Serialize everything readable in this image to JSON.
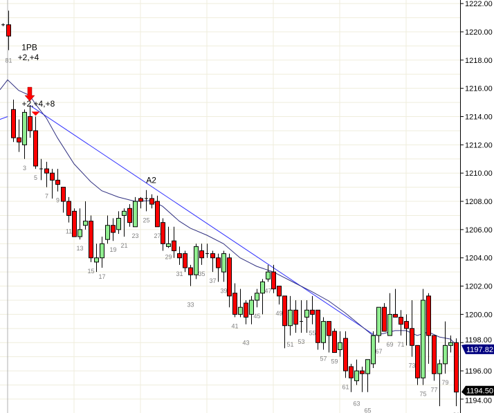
{
  "chart_data": {
    "type": "candlestick",
    "ylim": [
      1193.6,
      1222.2
    ],
    "yticks": [
      "1194.00",
      "1196.00",
      "1198.00",
      "1200.00",
      "1202.00",
      "1204.00",
      "1206.00",
      "1208.00",
      "1210.00",
      "1212.00",
      "1214.00",
      "1216.00",
      "1218.00",
      "1220.00",
      "1222.00"
    ],
    "grid": true,
    "colors": {
      "up": "#90ee90",
      "down": "#ff0000",
      "ema": "#303080",
      "trendline": "#3030ff",
      "grid": "#efeddc",
      "ema_tag": "#000080",
      "last_tag": "#000000"
    },
    "prior_day": [
      {
        "o": 1220.5,
        "h": 1220.6,
        "l": 1220.4,
        "c": 1220.5
      },
      {
        "label": "81",
        "o": 1220.5,
        "h": 1221.5,
        "l": 1218.7,
        "c": 1219.7
      }
    ],
    "candles": [
      [
        1214.5,
        1215.2,
        1212.2,
        1212.5
      ],
      [
        1212.5,
        1213.8,
        1211.5,
        1212.2
      ],
      [
        1212,
        1214.5,
        1211,
        1214.3
      ],
      [
        1214,
        1214.8,
        1212.5,
        1213
      ],
      [
        1213,
        1214,
        1210.3,
        1210.5
      ],
      [
        1210.3,
        1211,
        1209.5,
        1210.3
      ],
      [
        1210.3,
        1210.8,
        1209,
        1210
      ],
      [
        1210,
        1210.3,
        1208.2,
        1209.5
      ],
      [
        1209.5,
        1210.3,
        1208.7,
        1209.2
      ],
      [
        1209,
        1209,
        1207.2,
        1208
      ],
      [
        1208,
        1208.3,
        1206.5,
        1207
      ],
      [
        1207.3,
        1207.5,
        1205.5,
        1205.5
      ],
      [
        1205.5,
        1207.5,
        1205.3,
        1206
      ],
      [
        1206.3,
        1208,
        1206,
        1206.6
      ],
      [
        1206.6,
        1207,
        1203.7,
        1204
      ],
      [
        1203.7,
        1205,
        1203,
        1204
      ],
      [
        1204,
        1205.5,
        1203.3,
        1205
      ],
      [
        1205.3,
        1207,
        1205,
        1206.3
      ],
      [
        1206.3,
        1206.8,
        1205.2,
        1205.8
      ],
      [
        1206,
        1207.3,
        1205.7,
        1206.8
      ],
      [
        1207,
        1207.5,
        1205.5,
        1207.3
      ],
      [
        1207.5,
        1207.8,
        1206.2,
        1206.5
      ],
      [
        1206.2,
        1208.3,
        1206.2,
        1208
      ],
      [
        1208.2,
        1208.3,
        1207.5,
        1208
      ],
      [
        1208.2,
        1208.8,
        1207.3,
        1208.2
      ],
      [
        1208.2,
        1208.5,
        1207.5,
        1207.8
      ],
      [
        1208,
        1208.4,
        1206.2,
        1206.2
      ],
      [
        1206.5,
        1206.8,
        1204.5,
        1205
      ],
      [
        1204.8,
        1206.2,
        1204.7,
        1205
      ],
      [
        1205.2,
        1206.2,
        1204,
        1204.5
      ],
      [
        1204.3,
        1204.8,
        1203.5,
        1204
      ],
      [
        1204.3,
        1204.5,
        1203,
        1203.3
      ],
      [
        1203.3,
        1203.5,
        1202,
        1202.8
      ],
      [
        1202.8,
        1205,
        1202.5,
        1204.8
      ],
      [
        1204.5,
        1205,
        1203.5,
        1204
      ],
      [
        1204.3,
        1205,
        1204,
        1204.3
      ],
      [
        1204.3,
        1204.5,
        1203,
        1204
      ],
      [
        1204,
        1204.3,
        1202.3,
        1203.3
      ],
      [
        1203,
        1204.5,
        1202.3,
        1204.3
      ],
      [
        1204,
        1204.3,
        1200.5,
        1201.3
      ],
      [
        1201.5,
        1202.2,
        1199.8,
        1200
      ],
      [
        1200,
        1201.8,
        1199.8,
        1200.5
      ],
      [
        1200.8,
        1201,
        1199.3,
        1199.8
      ],
      [
        1200,
        1201.3,
        1199.3,
        1201
      ],
      [
        1201,
        1201.8,
        1200.5,
        1201.5
      ],
      [
        1201.5,
        1202.5,
        1200,
        1202.3
      ],
      [
        1202.5,
        1203.5,
        1202.3,
        1203
      ],
      [
        1203,
        1203.5,
        1201.5,
        1201.8
      ],
      [
        1202,
        1202,
        1200.7,
        1201.3
      ],
      [
        1201.3,
        1201.3,
        1197.6,
        1199.2
      ],
      [
        1199.2,
        1201.3,
        1198.5,
        1200.3
      ],
      [
        1200.3,
        1201,
        1198.7,
        1199.3
      ],
      [
        1199.5,
        1201,
        1198.7,
        1199.5
      ],
      [
        1199.8,
        1201,
        1198.7,
        1200.3
      ],
      [
        1200.3,
        1201.3,
        1199.3,
        1200
      ],
      [
        1200.3,
        1200.3,
        1197.5,
        1198
      ],
      [
        1198,
        1199.8,
        1197.5,
        1199.5
      ],
      [
        1199.5,
        1199.5,
        1197.3,
        1198.5
      ],
      [
        1198.8,
        1199,
        1197.3,
        1197.3
      ],
      [
        1197.5,
        1198.8,
        1197,
        1198
      ],
      [
        1198.3,
        1198.8,
        1195.5,
        1196
      ],
      [
        1196.3,
        1196.5,
        1194.5,
        1195.5
      ],
      [
        1195.3,
        1196.8,
        1195,
        1196
      ],
      [
        1196,
        1196.3,
        1194.5,
        1195.8
      ],
      [
        1195.8,
        1196.8,
        1194.5,
        1196.8
      ],
      [
        1196.5,
        1198.8,
        1196.2,
        1198.5
      ],
      [
        1198.5,
        1200.5,
        1198,
        1200.5
      ],
      [
        1200.5,
        1200.8,
        1198.8,
        1198.8
      ],
      [
        1198.5,
        1201.5,
        1198.5,
        1200
      ],
      [
        1200,
        1201.8,
        1199.8,
        1199.8
      ],
      [
        1199.8,
        1200.3,
        1198.5,
        1199.3
      ],
      [
        1199.5,
        1200,
        1197.8,
        1199
      ],
      [
        1199,
        1201,
        1197,
        1197.8
      ],
      [
        1197.8,
        1197.8,
        1195,
        1195.5
      ],
      [
        1195.5,
        1201.8,
        1195,
        1201
      ],
      [
        1201.3,
        1201.5,
        1196.5,
        1198.5
      ],
      [
        1198.5,
        1198.5,
        1195.3,
        1195.8
      ],
      [
        1195.8,
        1196.8,
        1193.5,
        1196.5
      ],
      [
        1196.5,
        1199.5,
        1195.8,
        1197.8
      ],
      [
        1197.8,
        1198.5,
        1197.3,
        1198
      ],
      [
        1198,
        1198.3,
        1193.5,
        1194.5
      ]
    ],
    "ema": [
      [
        0,
        1216.6
      ],
      [
        2,
        1215.85
      ],
      [
        4,
        1215.5
      ],
      [
        5,
        1214.9
      ],
      [
        7,
        1213.9
      ],
      [
        9,
        1212.5
      ],
      [
        12,
        1210.65
      ],
      [
        15,
        1209.4
      ],
      [
        17,
        1208.75
      ],
      [
        20,
        1208.3
      ],
      [
        23,
        1208
      ],
      [
        26,
        1208.05
      ],
      [
        28,
        1207.65
      ],
      [
        31,
        1206.6
      ],
      [
        33,
        1206.1
      ],
      [
        36,
        1205.6
      ],
      [
        39,
        1205
      ],
      [
        42,
        1204
      ],
      [
        45,
        1203.4
      ],
      [
        48,
        1203
      ],
      [
        52,
        1202.2
      ],
      [
        55,
        1201.6
      ],
      [
        58,
        1200.95
      ],
      [
        61,
        1200.1
      ],
      [
        66,
        1198.5
      ],
      [
        68,
        1198.65
      ],
      [
        70,
        1198.85
      ],
      [
        72,
        1198.85
      ],
      [
        74,
        1198.5
      ],
      [
        76,
        1198.75
      ],
      [
        78,
        1198.4
      ],
      [
        80,
        1198.25
      ],
      [
        81,
        1197.85
      ]
    ],
    "trendline": {
      "from": [
        4,
        1214.8
      ],
      "to": [
        66,
        1198.6
      ]
    },
    "prior_trendline": {
      "from": [
        -1.4,
        1213.8
      ],
      "to": [
        0,
        1214.0
      ]
    },
    "annotations": [
      {
        "text": "1PB",
        "bar": 3.2,
        "price": 1218.7
      },
      {
        "text": "+2,+4",
        "bar": 3.0,
        "price": 1218.1
      },
      {
        "text": "+2,+4,+8",
        "bar": 4.8,
        "price": 1214.7
      },
      {
        "text": "A2",
        "bar": 25.2,
        "price": 1209.3
      }
    ],
    "signal_arrow": {
      "bar": 4,
      "price": 1215.1,
      "color": "#ff0000"
    },
    "signal_triangle": {
      "bar": 5,
      "price": 1214.2,
      "color": "#ff0000"
    },
    "ema_tag": "1197.82",
    "last_tag": "1194.50"
  }
}
